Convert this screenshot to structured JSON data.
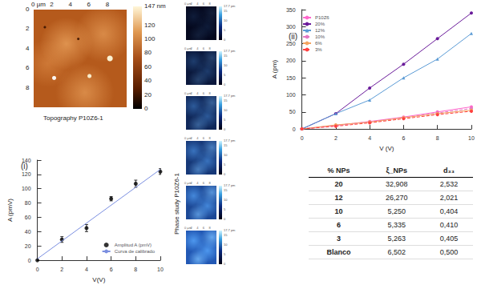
{
  "chart_data": [
    {
      "type": "scatter",
      "label": "(i)",
      "x_label": "V(V)",
      "y_label": "A (pmV)",
      "xlim": [
        0,
        10
      ],
      "xticks": [
        0,
        2,
        4,
        6,
        8,
        10
      ],
      "ylim": [
        0,
        140
      ],
      "yticks": [
        0,
        20,
        40,
        60,
        80,
        100,
        120,
        140
      ],
      "legend": "bottom-right",
      "grid": false,
      "series": [
        {
          "name": "Amplitud A (pmV)",
          "type": "scatter",
          "color": "#000000",
          "marker": "circle",
          "x": [
            0,
            2,
            4,
            6,
            8,
            10
          ],
          "values": [
            0,
            29,
            45,
            86,
            107,
            124
          ],
          "errors": [
            0,
            4,
            5,
            3,
            5,
            4
          ]
        },
        {
          "name": "Curva de calibrado",
          "type": "line",
          "color": "#7b8fe0",
          "line_style": "solid",
          "x": [
            0,
            10
          ],
          "values": [
            2,
            127
          ]
        }
      ]
    },
    {
      "type": "line",
      "label": "(ii)",
      "x_label": "V (V)",
      "y_label": "A (pm)",
      "xlim": [
        0,
        10
      ],
      "xticks": [
        0,
        2,
        4,
        6,
        8,
        10
      ],
      "ylim": [
        0,
        350
      ],
      "yticks": [
        0,
        50,
        100,
        150,
        200,
        250,
        300,
        350
      ],
      "legend": "top-left",
      "grid": false,
      "x": [
        0,
        2,
        4,
        6,
        8,
        10
      ],
      "series": [
        {
          "name": "P10Z6",
          "color": "#ff66cc",
          "marker": "circle",
          "line_style": "solid",
          "values": [
            0,
            10,
            22,
            35,
            50,
            65
          ]
        },
        {
          "name": "20%",
          "color": "#6a1b9a",
          "marker": "circle",
          "line_style": "solid",
          "values": [
            0,
            45,
            120,
            190,
            265,
            340
          ]
        },
        {
          "name": "12%",
          "color": "#5b9bd5",
          "marker": "triangle",
          "line_style": "solid",
          "values": [
            0,
            45,
            85,
            150,
            205,
            280
          ]
        },
        {
          "name": "10%",
          "color": "#e377c2",
          "marker": "circle",
          "line_style": "dashed",
          "values": [
            0,
            11,
            21,
            33,
            47,
            60
          ]
        },
        {
          "name": "6%",
          "color": "#f4a460",
          "marker": "circle",
          "line_style": "solid",
          "values": [
            0,
            12,
            20,
            33,
            45,
            55
          ]
        },
        {
          "name": "3%",
          "color": "#ff4040",
          "marker": "circle",
          "line_style": "dashed",
          "values": [
            0,
            8,
            18,
            30,
            42,
            52
          ]
        }
      ]
    }
  ],
  "topography": {
    "title": "Topography P10Z6-1",
    "extent": [
      0,
      10
    ],
    "x_ticks": [
      {
        "value": 0,
        "label": "0 µm"
      },
      2,
      4,
      6,
      8
    ],
    "y_ticks": [
      0,
      2,
      4,
      6,
      8
    ],
    "colorbar": {
      "range": [
        0,
        147
      ],
      "ticks": [
        {
          "value": 147,
          "label": "147 nm"
        },
        120,
        100,
        80,
        60,
        40,
        20,
        0
      ]
    }
  },
  "phase_study": {
    "title": "Phase study P10Z6-1",
    "panels": 6,
    "extent": [
      0,
      10
    ],
    "x_ticks": [
      {
        "value": 0,
        "label": "0 µm"
      },
      2,
      4,
      6,
      8
    ],
    "colorbar": {
      "range": [
        0,
        17.7
      ],
      "ticks": [
        {
          "value": 17.7,
          "label": "17.7 pm"
        },
        15,
        10,
        5,
        0
      ]
    }
  },
  "table": {
    "header": [
      "% NPs",
      "ξ_NPs",
      "d₃₃"
    ],
    "rows": [
      [
        "20",
        "32,908",
        "2,532"
      ],
      [
        "12",
        "26,270",
        "2,021"
      ],
      [
        "10",
        "5,250",
        "0,404"
      ],
      [
        "6",
        "5,335",
        "0,410"
      ],
      [
        "3",
        "5,263",
        "0,405"
      ],
      [
        "Blanco",
        "6,502",
        "0,500"
      ]
    ]
  }
}
